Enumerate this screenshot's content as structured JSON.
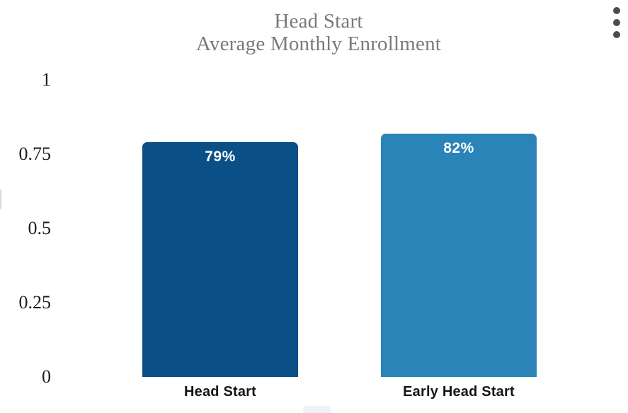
{
  "header": {
    "menu_icon": "kebab-vertical-menu"
  },
  "chart_data": {
    "type": "bar",
    "title": "Head Start Average Monthly Enrollment",
    "title_lines": [
      "Head Start",
      "Average Monthly Enrollment"
    ],
    "categories": [
      "Head Start",
      "Early Head Start"
    ],
    "values": [
      0.79,
      0.82
    ],
    "value_labels": [
      "79%",
      "82%"
    ],
    "bar_colors": [
      "#0a5087",
      "#2a84b8"
    ],
    "value_label_color": "#ffffff",
    "title_color": "#7a7a7a",
    "ytick_labels": [
      "0",
      "0.25",
      "0.5",
      "0.75",
      "1"
    ],
    "ytick_values": [
      0,
      0.25,
      0.5,
      0.75,
      1
    ],
    "ylim": [
      0,
      1
    ],
    "xlabel": "",
    "ylabel": "",
    "grid": false,
    "axis_lines": false,
    "legend": "none"
  }
}
